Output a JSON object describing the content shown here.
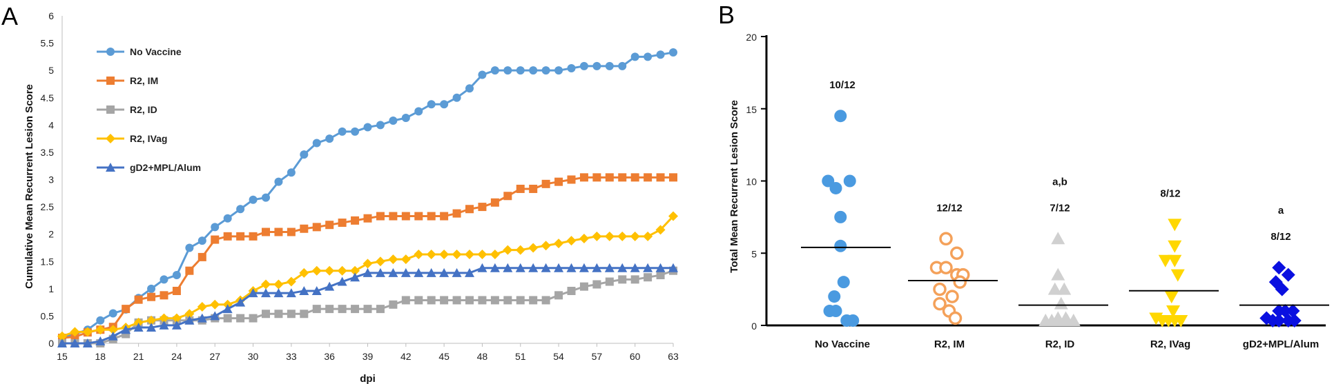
{
  "chart_data": [
    {
      "panel": "A",
      "type": "line",
      "xlabel": "dpi",
      "ylabel": "Cumulative Mean Recurrent Lesion Score",
      "xlim": [
        15,
        63
      ],
      "ylim": [
        0,
        6
      ],
      "xticks": [
        "15",
        "18",
        "21",
        "24",
        "27",
        "30",
        "33",
        "36",
        "39",
        "42",
        "45",
        "48",
        "51",
        "54",
        "57",
        "60",
        "63"
      ],
      "yticks": [
        "0",
        "0.5",
        "1",
        "1.5",
        "2",
        "2.5",
        "3",
        "3.5",
        "4",
        "4.5",
        "5",
        "5.5",
        "6"
      ],
      "legend_position": "top-left",
      "x": [
        15,
        16,
        17,
        18,
        19,
        20,
        21,
        22,
        23,
        24,
        25,
        26,
        27,
        28,
        29,
        30,
        31,
        32,
        33,
        34,
        35,
        36,
        37,
        38,
        39,
        40,
        41,
        42,
        43,
        44,
        45,
        46,
        47,
        48,
        49,
        50,
        51,
        52,
        53,
        54,
        55,
        56,
        57,
        58,
        59,
        60,
        61,
        62,
        63
      ],
      "series": [
        {
          "name": "No Vaccine",
          "color": "#5b9bd5",
          "marker": "circle",
          "values": [
            0.1,
            0.17,
            0.25,
            0.42,
            0.55,
            0.62,
            0.83,
            1.0,
            1.17,
            1.25,
            1.75,
            1.88,
            2.13,
            2.29,
            2.46,
            2.63,
            2.67,
            2.96,
            3.13,
            3.46,
            3.67,
            3.75,
            3.88,
            3.88,
            3.96,
            4.0,
            4.08,
            4.13,
            4.25,
            4.38,
            4.38,
            4.5,
            4.67,
            4.92,
            5.0,
            5.0,
            5.0,
            5.0,
            5.0,
            5.0,
            5.04,
            5.08,
            5.08,
            5.08,
            5.08,
            5.25,
            5.25,
            5.29,
            5.33
          ]
        },
        {
          "name": "R2, IM",
          "color": "#ed7d31",
          "marker": "square",
          "values": [
            0.1,
            0.12,
            0.2,
            0.25,
            0.3,
            0.63,
            0.8,
            0.85,
            0.88,
            0.96,
            1.33,
            1.58,
            1.9,
            1.96,
            1.96,
            1.96,
            2.04,
            2.04,
            2.04,
            2.1,
            2.13,
            2.17,
            2.21,
            2.25,
            2.29,
            2.33,
            2.33,
            2.33,
            2.33,
            2.33,
            2.33,
            2.38,
            2.46,
            2.5,
            2.58,
            2.7,
            2.83,
            2.83,
            2.92,
            2.96,
            3.0,
            3.04,
            3.04,
            3.04,
            3.04,
            3.04,
            3.04,
            3.04,
            3.04
          ]
        },
        {
          "name": "R2, ID",
          "color": "#a5a5a5",
          "marker": "square",
          "values": [
            0.0,
            0.0,
            0.0,
            0.0,
            0.08,
            0.17,
            0.38,
            0.42,
            0.42,
            0.42,
            0.42,
            0.42,
            0.46,
            0.46,
            0.46,
            0.46,
            0.54,
            0.54,
            0.54,
            0.54,
            0.63,
            0.63,
            0.63,
            0.63,
            0.63,
            0.63,
            0.71,
            0.79,
            0.79,
            0.79,
            0.79,
            0.79,
            0.79,
            0.79,
            0.79,
            0.79,
            0.79,
            0.79,
            0.79,
            0.88,
            0.96,
            1.04,
            1.08,
            1.13,
            1.17,
            1.17,
            1.21,
            1.25,
            1.33
          ]
        },
        {
          "name": "R2, IVag",
          "color": "#ffc000",
          "marker": "diamond",
          "values": [
            0.13,
            0.21,
            0.21,
            0.25,
            0.25,
            0.29,
            0.38,
            0.42,
            0.46,
            0.46,
            0.54,
            0.67,
            0.71,
            0.71,
            0.79,
            0.96,
            1.08,
            1.08,
            1.13,
            1.29,
            1.33,
            1.33,
            1.33,
            1.33,
            1.46,
            1.5,
            1.54,
            1.54,
            1.63,
            1.63,
            1.63,
            1.63,
            1.63,
            1.63,
            1.63,
            1.71,
            1.71,
            1.75,
            1.79,
            1.83,
            1.88,
            1.92,
            1.96,
            1.96,
            1.96,
            1.96,
            1.96,
            2.08,
            2.33
          ]
        },
        {
          "name": "gD2+MPL/Alum",
          "color": "#4472c4",
          "marker": "triangle",
          "values": [
            0.0,
            0.0,
            0.0,
            0.04,
            0.13,
            0.25,
            0.29,
            0.29,
            0.33,
            0.33,
            0.42,
            0.46,
            0.5,
            0.63,
            0.75,
            0.92,
            0.92,
            0.92,
            0.92,
            0.96,
            0.96,
            1.04,
            1.13,
            1.21,
            1.29,
            1.29,
            1.29,
            1.29,
            1.29,
            1.29,
            1.29,
            1.29,
            1.29,
            1.38,
            1.38,
            1.38,
            1.38,
            1.38,
            1.38,
            1.38,
            1.38,
            1.38,
            1.38,
            1.38,
            1.38,
            1.38,
            1.38,
            1.38,
            1.38
          ]
        }
      ]
    },
    {
      "panel": "B",
      "type": "scatter",
      "ylabel": "Total Mean Recurrent Lesion Score",
      "ylim": [
        0,
        20
      ],
      "yticks": [
        "0",
        "5",
        "10",
        "15",
        "20"
      ],
      "categories": [
        "No Vaccine",
        "R2, IM",
        "R2, ID",
        "R2, IVag",
        "gD2+MPL/Alum"
      ],
      "groups": [
        {
          "name": "No Vaccine",
          "color": "#4a9ae0",
          "marker": "filled-circle",
          "fraction": "10/12",
          "letters": "",
          "mean": 5.4,
          "points": [
            [
              -0.3,
              1.0
            ],
            [
              -0.1,
              1.0
            ],
            [
              -0.15,
              2.0
            ],
            [
              0.15,
              3.0
            ],
            [
              0.25,
              0.0
            ],
            [
              0.45,
              0.0
            ],
            [
              -0.35,
              10.0
            ],
            [
              -0.1,
              9.5
            ],
            [
              0.35,
              10.0
            ],
            [
              0.05,
              7.5
            ],
            [
              0.05,
              5.5
            ],
            [
              0.05,
              14.5
            ]
          ]
        },
        {
          "name": "R2, IM",
          "color": "#f4a15a",
          "marker": "open-circle",
          "fraction": "12/12",
          "letters": "",
          "mean": 3.1,
          "points": [
            [
              -0.3,
              4.0
            ],
            [
              0.0,
              4.0
            ],
            [
              0.35,
              5.0
            ],
            [
              0.0,
              6.0
            ],
            [
              -0.2,
              2.5
            ],
            [
              0.2,
              2.0
            ],
            [
              -0.2,
              1.5
            ],
            [
              0.1,
              1.0
            ],
            [
              0.3,
              0.5
            ],
            [
              0.35,
              3.5
            ],
            [
              0.55,
              3.5
            ],
            [
              0.45,
              3.0
            ]
          ]
        },
        {
          "name": "R2, ID",
          "color": "#d0d0d0",
          "marker": "triangle",
          "fraction": "7/12",
          "letters": "a,b",
          "mean": 1.4,
          "points": [
            [
              -0.35,
              0.0
            ],
            [
              -0.15,
              0.0
            ],
            [
              0.05,
              0.0
            ],
            [
              0.35,
              0.0
            ],
            [
              0.55,
              0.0
            ],
            [
              0.05,
              6.0
            ],
            [
              0.05,
              3.5
            ],
            [
              -0.05,
              2.5
            ],
            [
              0.15,
              1.5
            ],
            [
              0.25,
              2.5
            ],
            [
              0.05,
              0.5
            ],
            [
              0.3,
              0.5
            ]
          ]
        },
        {
          "name": "R2, IVag",
          "color": "#ffd700",
          "marker": "inverted-triangle",
          "fraction": "8/12",
          "letters": "",
          "mean": 2.4,
          "points": [
            [
              0.25,
              7.0
            ],
            [
              -0.05,
              4.5
            ],
            [
              0.25,
              5.5
            ],
            [
              0.25,
              4.5
            ],
            [
              0.35,
              3.5
            ],
            [
              0.15,
              2.0
            ],
            [
              -0.35,
              0.5
            ],
            [
              -0.15,
              0.0
            ],
            [
              0.05,
              0.0
            ],
            [
              0.25,
              0.0
            ],
            [
              0.45,
              0.0
            ],
            [
              0.2,
              1.0
            ]
          ]
        },
        {
          "name": "gD2+MPL/Alum",
          "color": "#0a10e0",
          "marker": "diamond",
          "fraction": "8/12",
          "letters": "a",
          "mean": 1.4,
          "points": [
            [
              0.05,
              4.0
            ],
            [
              -0.05,
              3.0
            ],
            [
              0.35,
              3.5
            ],
            [
              0.15,
              2.5
            ],
            [
              -0.35,
              0.5
            ],
            [
              -0.15,
              0.0
            ],
            [
              0.05,
              0.0
            ],
            [
              0.25,
              1.0
            ],
            [
              0.5,
              1.0
            ],
            [
              0.05,
              1.0
            ],
            [
              0.35,
              0.0
            ],
            [
              0.55,
              0.0
            ]
          ]
        }
      ]
    }
  ]
}
